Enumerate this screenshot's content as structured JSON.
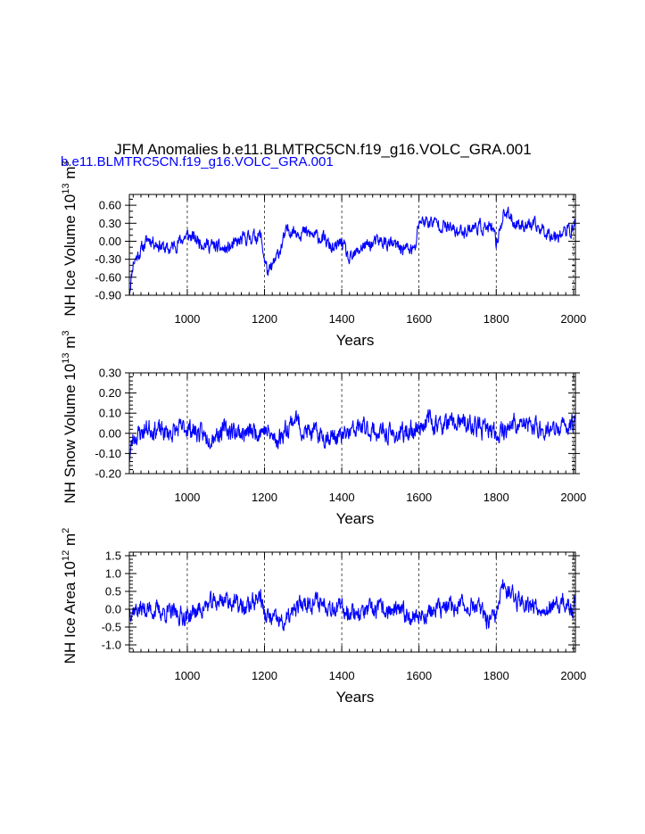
{
  "title": "JFM Anomalies b.e11.BLMTRC5CN.f19_g16.VOLC_GRA.001",
  "subtitle": "b.e11.BLMTRC5CN.f19_g16.VOLC_GRA.001",
  "colors": {
    "line": "#0000ff",
    "subtitle": "#0000ff",
    "axis": "#000000"
  },
  "chart_data": [
    {
      "type": "line",
      "ylabel": {
        "text": "NH Ice Volume 10",
        "exp": "13",
        "unit": " m",
        "unit_exp": "3"
      },
      "xlabel": "Years",
      "xlim": [
        850,
        2005
      ],
      "ylim": [
        -0.9,
        0.78
      ],
      "x_ticks": [
        1000,
        1200,
        1400,
        1600,
        1800,
        2000
      ],
      "x_tick_labels": [
        "1000",
        "1200",
        "1400",
        "1600",
        "1800",
        "2000"
      ],
      "y_ticks": [
        -0.9,
        -0.6,
        -0.3,
        0.0,
        0.3,
        0.6
      ],
      "y_tick_labels": [
        "-0.90",
        "-0.60",
        "-0.30",
        "0.00",
        "0.30",
        "0.60"
      ],
      "y_minor_step": 0.1,
      "noise": 0.13,
      "seed": 11,
      "series": [
        {
          "name": "NH Ice Volume",
          "anchor_years": [
            850,
            860,
            880,
            900,
            950,
            1000,
            1050,
            1100,
            1150,
            1190,
            1200,
            1210,
            1230,
            1260,
            1300,
            1350,
            1380,
            1400,
            1420,
            1450,
            1500,
            1550,
            1590,
            1600,
            1650,
            1700,
            1750,
            1790,
            1800,
            1820,
            1850,
            1900,
            1950,
            2000,
            2005
          ],
          "anchor_values": [
            -0.85,
            -0.35,
            -0.15,
            0.05,
            -0.15,
            0.1,
            -0.05,
            -0.15,
            0.05,
            0.1,
            -0.3,
            -0.55,
            -0.3,
            0.2,
            0.15,
            0.05,
            -0.15,
            0.0,
            -0.35,
            -0.1,
            0.0,
            -0.1,
            -0.15,
            0.35,
            0.3,
            0.15,
            0.25,
            0.2,
            -0.05,
            0.5,
            0.3,
            0.25,
            0.1,
            0.2,
            0.35
          ]
        }
      ]
    },
    {
      "type": "line",
      "ylabel": {
        "text": "NH Snow Volume 10",
        "exp": "13",
        "unit": " m",
        "unit_exp": "3"
      },
      "xlabel": "Years",
      "xlim": [
        850,
        2005
      ],
      "ylim": [
        -0.2,
        0.3
      ],
      "x_ticks": [
        1000,
        1200,
        1400,
        1600,
        1800,
        2000
      ],
      "x_tick_labels": [
        "1000",
        "1200",
        "1400",
        "1600",
        "1800",
        "2000"
      ],
      "y_ticks": [
        -0.2,
        -0.1,
        0.0,
        0.1,
        0.2,
        0.3
      ],
      "y_tick_labels": [
        "-0.20",
        "-0.10",
        "0.00",
        "0.10",
        "0.20",
        "0.30"
      ],
      "y_minor_step": 0.02,
      "noise": 0.055,
      "seed": 23,
      "series": [
        {
          "name": "NH Snow Volume",
          "anchor_years": [
            850,
            860,
            900,
            950,
            1000,
            1050,
            1100,
            1150,
            1200,
            1230,
            1280,
            1300,
            1350,
            1400,
            1450,
            1500,
            1550,
            1600,
            1620,
            1650,
            1700,
            1750,
            1800,
            1850,
            1900,
            1950,
            2000,
            2005
          ],
          "anchor_values": [
            -0.12,
            -0.02,
            0.03,
            0.0,
            0.03,
            -0.02,
            0.02,
            0.0,
            0.02,
            -0.04,
            0.08,
            0.01,
            -0.01,
            -0.02,
            0.03,
            0.0,
            -0.01,
            0.03,
            0.07,
            0.04,
            0.05,
            0.03,
            0.0,
            0.05,
            0.03,
            0.01,
            0.05,
            0.1
          ]
        }
      ]
    },
    {
      "type": "line",
      "ylabel": {
        "text": "NH Ice Area 10",
        "exp": "12",
        "unit": " m",
        "unit_exp": "2"
      },
      "xlabel": "Years",
      "xlim": [
        850,
        2005
      ],
      "ylim": [
        -1.2,
        1.6
      ],
      "x_ticks": [
        1000,
        1200,
        1400,
        1600,
        1800,
        2000
      ],
      "x_tick_labels": [
        "1000",
        "1200",
        "1400",
        "1600",
        "1800",
        "2000"
      ],
      "y_ticks": [
        -1.0,
        -0.5,
        0.0,
        0.5,
        1.0,
        1.5
      ],
      "y_tick_labels": [
        "-1.0",
        "-0.5",
        "0.0",
        "0.5",
        "1.0",
        "1.5"
      ],
      "y_minor_step": 0.1,
      "noise": 0.3,
      "seed": 37,
      "series": [
        {
          "name": "NH Ice Area",
          "anchor_years": [
            850,
            900,
            950,
            1000,
            1050,
            1100,
            1150,
            1190,
            1200,
            1250,
            1300,
            1350,
            1400,
            1450,
            1500,
            1550,
            1600,
            1650,
            1700,
            1750,
            1780,
            1800,
            1820,
            1850,
            1900,
            1950,
            1980,
            2000,
            2005
          ],
          "anchor_values": [
            0.0,
            0.0,
            -0.1,
            -0.2,
            0.1,
            0.3,
            0.0,
            0.4,
            -0.2,
            -0.4,
            0.2,
            0.2,
            0.0,
            -0.1,
            0.0,
            -0.1,
            -0.2,
            0.0,
            0.1,
            0.1,
            -0.4,
            -0.2,
            0.7,
            0.3,
            0.1,
            0.0,
            0.2,
            -0.2,
            0.5
          ]
        }
      ]
    }
  ]
}
